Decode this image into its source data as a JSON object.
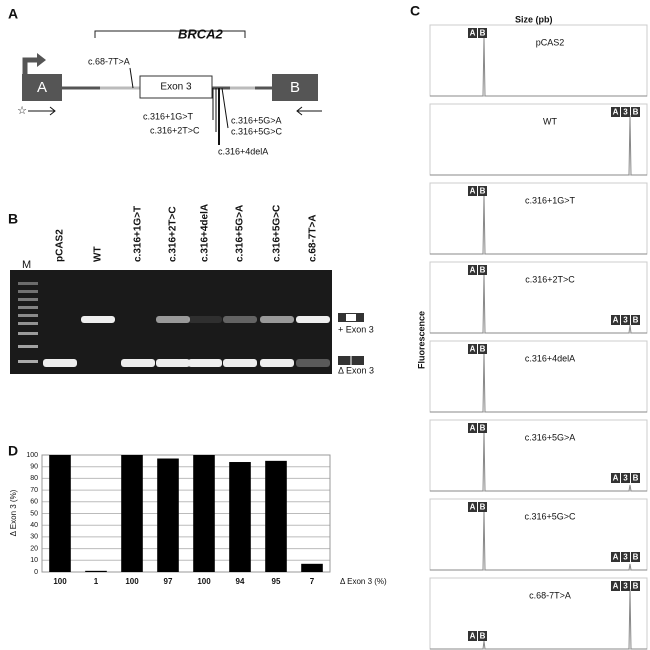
{
  "panel_a": {
    "label": "A",
    "gene": "BRCA2",
    "exon_3": "Exon 3",
    "exon_a": "A",
    "exon_b": "B",
    "variants": [
      "c.68-7T>A",
      "c.316+1G>T",
      "c.316+2T>C",
      "c.316+5G>A",
      "c.316+5G>C",
      "c.316+4delA"
    ]
  },
  "panel_b": {
    "label": "B",
    "marker": "M",
    "lanes": [
      "pCAS2",
      "WT",
      "c.316+1G>T",
      "c.316+2T>C",
      "c.316+4delA",
      "c.316+5G>A",
      "c.316+5G>C",
      "c.68-7T>A"
    ],
    "band_labels": [
      "+ Exon 3",
      "Δ Exon 3"
    ]
  },
  "panel_c": {
    "label": "C",
    "x_title": "Size (pb)",
    "y_title": "Fluorescence",
    "short_fragment": [
      "A",
      "B"
    ],
    "long_fragment": [
      "A",
      "3",
      "B"
    ],
    "traces": [
      "pCAS2",
      "WT",
      "c.316+1G>T",
      "c.316+2T>C",
      "c.316+4delA",
      "c.316+5G>A",
      "c.316+5G>C",
      "c.68-7T>A"
    ]
  },
  "chart_data": {
    "type": "bar",
    "label": "D",
    "y_title": "Δ Exon 3 (%)",
    "x_title": "Δ Exon 3 (%)",
    "values": [
      100,
      1,
      100,
      97,
      100,
      94,
      95,
      7
    ],
    "color": "#000000",
    "ylim": [
      0,
      100
    ],
    "yticks": [
      0,
      10,
      20,
      30,
      40,
      50,
      60,
      70,
      80,
      90,
      100
    ],
    "grid": true
  }
}
